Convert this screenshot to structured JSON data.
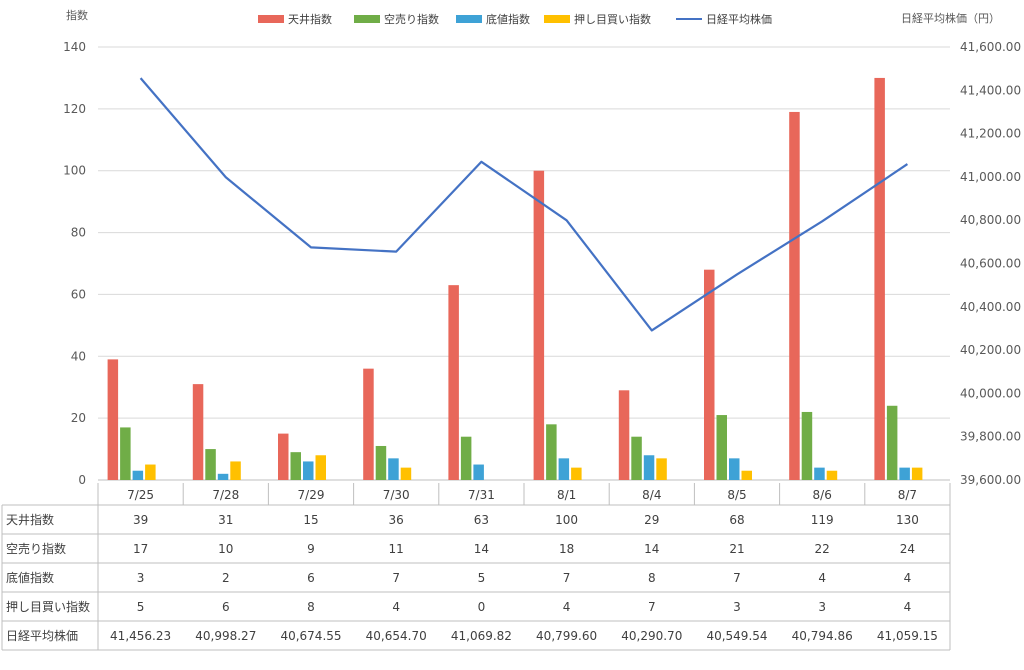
{
  "chart_data": {
    "type": "bar",
    "y_left_title": "指数",
    "y_right_title": "日経平均株価（円）",
    "categories": [
      "7/25",
      "7/28",
      "7/29",
      "7/30",
      "7/31",
      "8/1",
      "8/4",
      "8/5",
      "8/6",
      "8/7"
    ],
    "y_left_range": [
      0,
      140
    ],
    "y_left_ticks": [
      "0",
      "20",
      "40",
      "60",
      "80",
      "100",
      "120",
      "140"
    ],
    "y_right_range": [
      39600,
      41600
    ],
    "y_right_ticks": [
      "39,600.00",
      "39,800.00",
      "40,000.00",
      "40,200.00",
      "40,400.00",
      "40,600.00",
      "40,800.00",
      "41,000.00",
      "41,200.00",
      "41,400.00",
      "41,600.00"
    ],
    "series": [
      {
        "name": "天井指数",
        "kind": "bar",
        "color": "#E8675A",
        "values": [
          39,
          31,
          15,
          36,
          63,
          100,
          29,
          68,
          119,
          130
        ]
      },
      {
        "name": "空売り指数",
        "kind": "bar",
        "color": "#70AD47",
        "values": [
          17,
          10,
          9,
          11,
          14,
          18,
          14,
          21,
          22,
          24
        ]
      },
      {
        "name": "底値指数",
        "kind": "bar",
        "color": "#3EA2D6",
        "values": [
          3,
          2,
          6,
          7,
          5,
          7,
          8,
          7,
          4,
          4
        ]
      },
      {
        "name": "押し目買い指数",
        "kind": "bar",
        "color": "#FFC000",
        "values": [
          5,
          6,
          8,
          4,
          0,
          4,
          7,
          3,
          3,
          4
        ]
      },
      {
        "name": "日経平均株価",
        "kind": "line",
        "axis": "right",
        "color": "#4472C4",
        "values": [
          41456.23,
          40998.27,
          40674.55,
          40654.7,
          41069.82,
          40799.6,
          40290.7,
          40549.54,
          40794.86,
          41059.15
        ]
      }
    ],
    "table_rows": [
      {
        "label": "天井指数",
        "cells": [
          "39",
          "31",
          "15",
          "36",
          "63",
          "100",
          "29",
          "68",
          "119",
          "130"
        ]
      },
      {
        "label": "空売り指数",
        "cells": [
          "17",
          "10",
          "9",
          "11",
          "14",
          "18",
          "14",
          "21",
          "22",
          "24"
        ]
      },
      {
        "label": "底値指数",
        "cells": [
          "3",
          "2",
          "6",
          "7",
          "5",
          "7",
          "8",
          "7",
          "4",
          "4"
        ]
      },
      {
        "label": "押し目買い指数",
        "cells": [
          "5",
          "6",
          "8",
          "4",
          "0",
          "4",
          "7",
          "3",
          "3",
          "4"
        ]
      },
      {
        "label": "日経平均株価",
        "cells": [
          "41,456.23",
          "40,998.27",
          "40,674.55",
          "40,654.70",
          "41,069.82",
          "40,799.60",
          "40,290.70",
          "40,549.54",
          "40,794.86",
          "41,059.15"
        ]
      }
    ]
  }
}
